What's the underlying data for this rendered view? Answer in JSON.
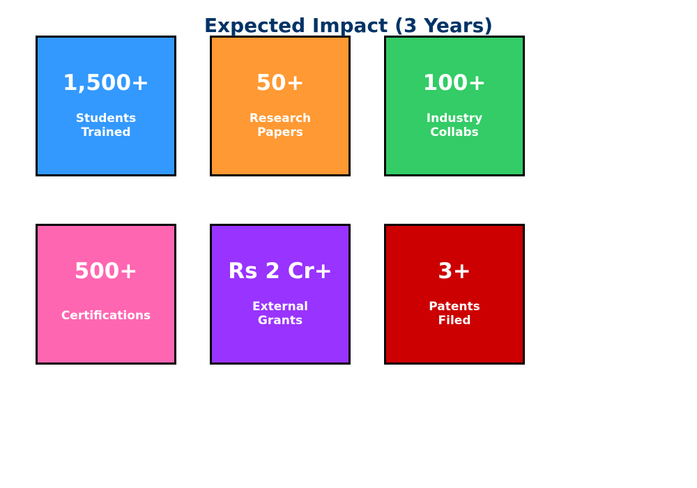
{
  "title": "Expected Impact (3 Years)",
  "cards": [
    {
      "value": "1,500+",
      "label": "Students\nTrained",
      "color": "#3399ff"
    },
    {
      "value": "50+",
      "label": "Research\nPapers",
      "color": "#ff9933"
    },
    {
      "value": "100+",
      "label": "Industry\nCollabs",
      "color": "#33cc66"
    },
    {
      "value": "500+",
      "label": "Certifications",
      "color": "#ff66b2"
    },
    {
      "value": "Rs 2 Cr+",
      "label": "External\nGrants",
      "color": "#9933ff"
    },
    {
      "value": "3+",
      "label": "Patents\nFiled",
      "color": "#cc0000"
    }
  ]
}
